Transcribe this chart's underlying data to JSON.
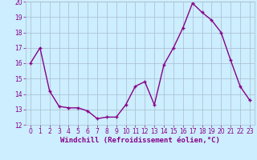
{
  "x": [
    0,
    1,
    2,
    3,
    4,
    5,
    6,
    7,
    8,
    9,
    10,
    11,
    12,
    13,
    14,
    15,
    16,
    17,
    18,
    19,
    20,
    21,
    22,
    23
  ],
  "y": [
    16.0,
    17.0,
    14.2,
    13.2,
    13.1,
    13.1,
    12.9,
    12.4,
    12.5,
    12.5,
    13.3,
    14.5,
    14.8,
    13.3,
    15.9,
    17.0,
    18.3,
    19.9,
    19.3,
    18.8,
    18.0,
    16.2,
    14.5,
    13.6
  ],
  "line_color": "#880088",
  "marker": "+",
  "marker_size": 3,
  "xlabel": "Windchill (Refroidissement éolien,°C)",
  "xlabel_fontsize": 6.5,
  "ylim": [
    12,
    20
  ],
  "xlim_min": -0.5,
  "xlim_max": 23.5,
  "yticks": [
    12,
    13,
    14,
    15,
    16,
    17,
    18,
    19,
    20
  ],
  "xticks": [
    0,
    1,
    2,
    3,
    4,
    5,
    6,
    7,
    8,
    9,
    10,
    11,
    12,
    13,
    14,
    15,
    16,
    17,
    18,
    19,
    20,
    21,
    22,
    23
  ],
  "tick_fontsize": 5.5,
  "background_color": "#cceeff",
  "grid_color": "#aabbcc",
  "line_width": 1.0
}
